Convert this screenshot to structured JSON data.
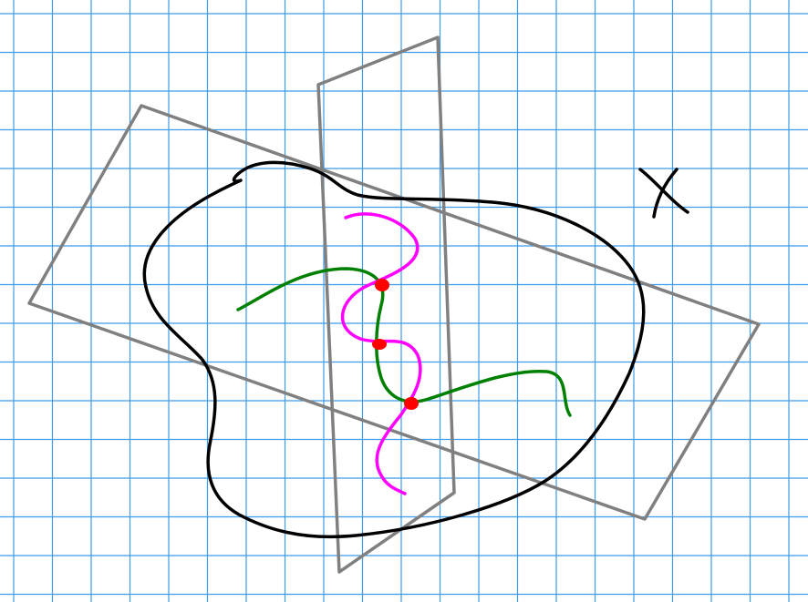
{
  "colors": {
    "background": "#ffffff",
    "grid": "#3d9be9",
    "plane_stroke": "#808080",
    "surface_stroke": "#000000",
    "curve_one": "#008000",
    "curve_two": "#ff00ff",
    "intersection_point": "#ff0000",
    "label_stroke": "#000000"
  },
  "elements": {
    "planes": [
      "rectangle-plane-tilted",
      "rectangle-plane-vertical"
    ],
    "surface": "closed-blob-surface",
    "curves": [
      "green-curve",
      "magenta-curve"
    ],
    "intersection_points": 3,
    "label_glyph": "x-mark"
  }
}
